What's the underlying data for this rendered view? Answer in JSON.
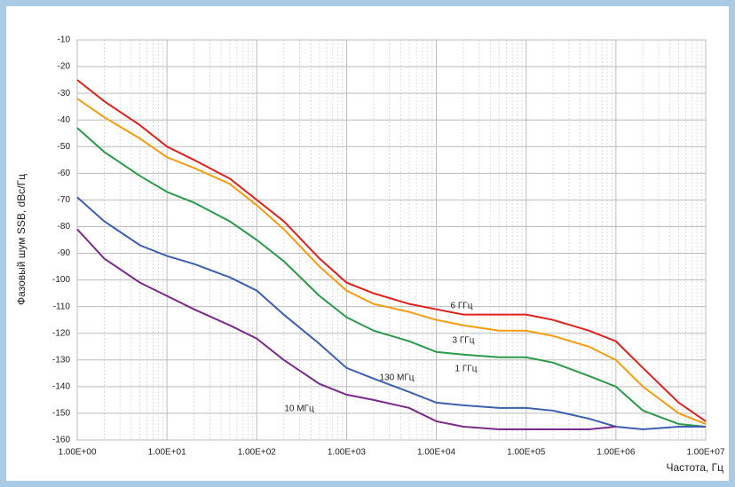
{
  "chart_data": {
    "type": "line",
    "xscale": "log",
    "grid": true,
    "ylabel": "Фазовый шум SSB, dBc/Гц",
    "xlabel": "Частота, Гц",
    "xlim": [
      1,
      10000000
    ],
    "xticks": [
      {
        "value": 1,
        "label": "1.00E+00"
      },
      {
        "value": 10,
        "label": "1.00E+01"
      },
      {
        "value": 100,
        "label": "1.00E+02"
      },
      {
        "value": 1000,
        "label": "1.00E+03"
      },
      {
        "value": 10000,
        "label": "1.00E+04"
      },
      {
        "value": 100000,
        "label": "1.00E+05"
      },
      {
        "value": 1000000,
        "label": "1.00E+06"
      },
      {
        "value": 10000000,
        "label": "1.00E+07"
      }
    ],
    "ylim": [
      -160,
      -10
    ],
    "yticks": [
      -10,
      -20,
      -30,
      -40,
      -50,
      -60,
      -70,
      -80,
      -90,
      -100,
      -110,
      -120,
      -130,
      -140,
      -150,
      -160
    ],
    "x": [
      1,
      2,
      5,
      10,
      20,
      50,
      100,
      200,
      500,
      1000,
      2000,
      5000,
      10000,
      20000,
      50000,
      100000,
      200000,
      500000,
      1000000,
      2000000,
      5000000,
      10000000
    ],
    "series": [
      {
        "name": "6 ГГц",
        "color": "#e0201c",
        "values": [
          -25,
          -33,
          -42,
          -50,
          -55,
          -62,
          -70,
          -78,
          -92,
          -101,
          -105,
          -109,
          -111,
          -113,
          -113,
          -113,
          -115,
          -119,
          -123,
          -133,
          -146,
          -153
        ]
      },
      {
        "name": "3 ГГц",
        "color": "#f59c12",
        "values": [
          -32,
          -39,
          -47,
          -54,
          -58,
          -64,
          -72,
          -81,
          -95,
          -104,
          -109,
          -112,
          -115,
          -117,
          -119,
          -119,
          -121,
          -125,
          -130,
          -140,
          -150,
          -154
        ]
      },
      {
        "name": "1 ГГц",
        "color": "#2b9a4a",
        "values": [
          -43,
          -52,
          -61,
          -67,
          -71,
          -78,
          -85,
          -93,
          -106,
          -114,
          -119,
          -123,
          -127,
          -128,
          -129,
          -129,
          -131,
          -136,
          -140,
          -149,
          -154,
          -155
        ]
      },
      {
        "name": "130 МГц",
        "color": "#3d5fb0",
        "values": [
          -69,
          -78,
          -87,
          -91,
          -94,
          -99,
          -104,
          -113,
          -124,
          -133,
          -137,
          -142,
          -146,
          -147,
          -148,
          -148,
          -149,
          -152,
          -155,
          -156,
          -155,
          -155
        ]
      },
      {
        "name": "10 МГц",
        "color": "#7a2a8a",
        "values": [
          -81,
          -92,
          -101,
          -106,
          -111,
          -117,
          -122,
          -130,
          -139,
          -143,
          -145,
          -148,
          -153,
          -155,
          -156,
          -156,
          -156,
          -156,
          -155,
          null,
          null,
          null
        ]
      }
    ]
  }
}
